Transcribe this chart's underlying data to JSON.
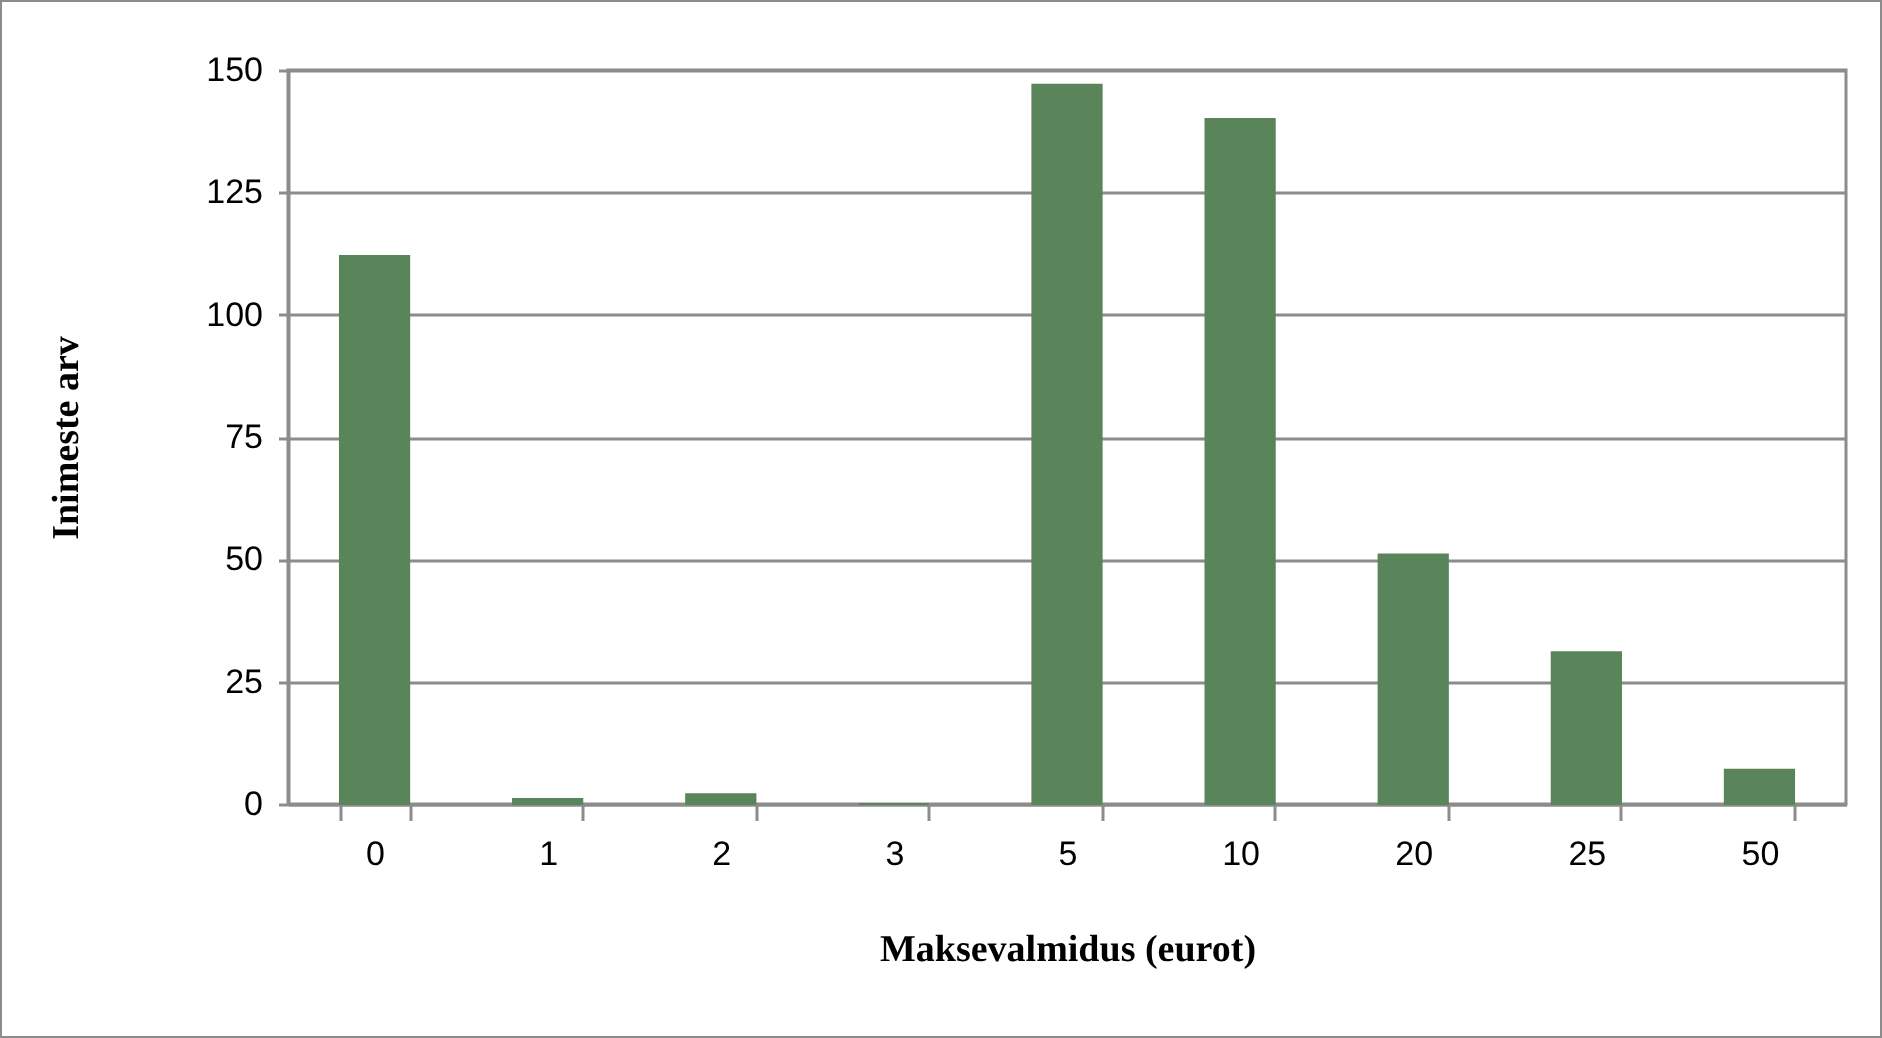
{
  "chart_data": {
    "type": "bar",
    "xlabel": "Maksevalmidus (eurot)",
    "ylabel": "Inimeste arv",
    "categories": [
      "0",
      "1",
      "2",
      "3",
      "5",
      "10",
      "20",
      "25",
      "50"
    ],
    "values": [
      112,
      1,
      2,
      0,
      147,
      140,
      51,
      31,
      7
    ],
    "color": "#5a855a",
    "ylim": [
      0,
      150
    ],
    "yticks": [
      0,
      25,
      50,
      75,
      100,
      125,
      150
    ],
    "grid": "y"
  }
}
